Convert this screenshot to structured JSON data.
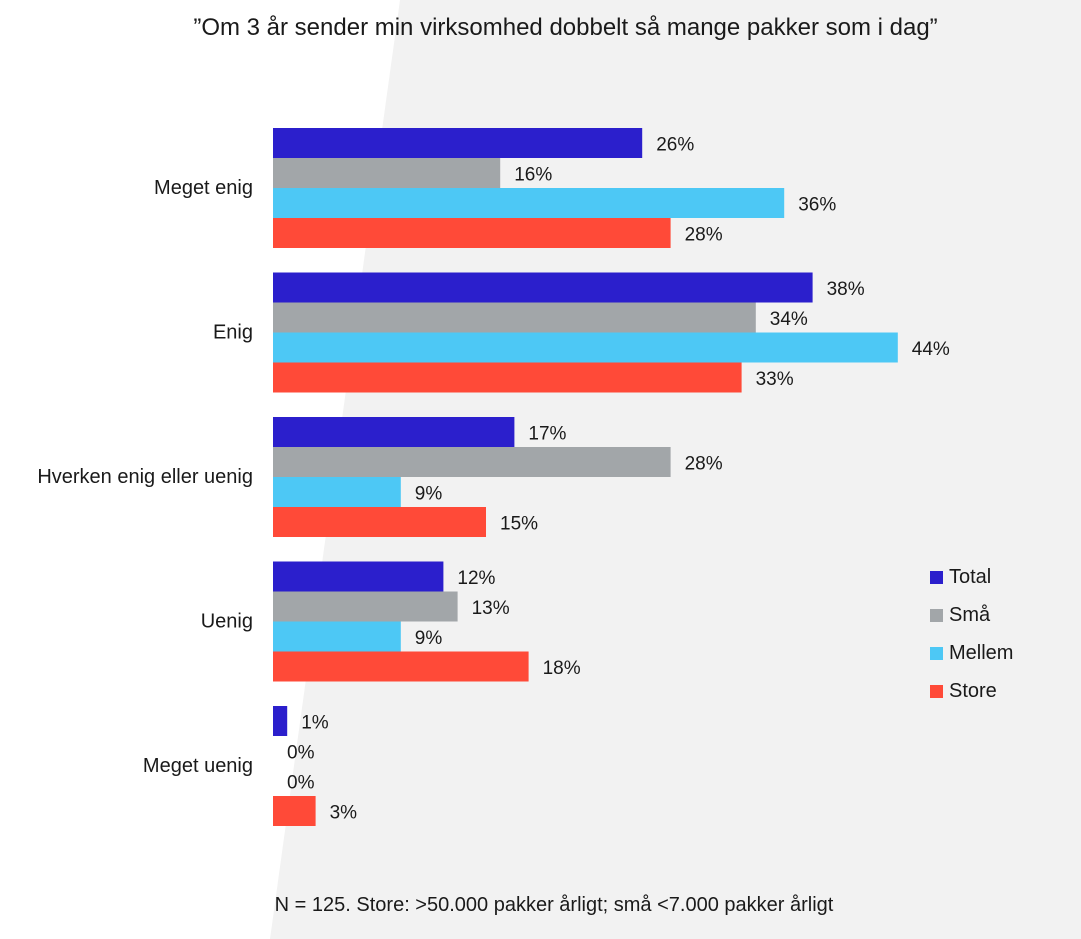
{
  "chart_data": {
    "type": "bar",
    "orientation": "horizontal",
    "title": "”Om 3 år sender min virksomhed dobbelt så mange pakker som i dag”",
    "categories": [
      "Meget enig",
      "Enig",
      "Hverken enig eller uenig",
      "Uenig",
      "Meget uenig"
    ],
    "series": [
      {
        "name": "Total",
        "color": "#2b1fcc",
        "values": [
          26,
          38,
          17,
          12,
          1
        ]
      },
      {
        "name": "Små",
        "color": "#a2a6a9",
        "values": [
          16,
          34,
          28,
          13,
          0
        ]
      },
      {
        "name": "Mellem",
        "color": "#4dc8f5",
        "values": [
          36,
          44,
          9,
          9,
          0
        ]
      },
      {
        "name": "Store",
        "color": "#ff4a38",
        "values": [
          28,
          33,
          15,
          18,
          3
        ]
      }
    ],
    "value_suffix": "%",
    "xlim": [
      0,
      45
    ],
    "legend_position": "right",
    "footnote": "N = 125. Store: >50.000 pakker årligt; små <7.000 pakker årligt"
  },
  "colors": {
    "background": "#ffffff",
    "background_shape": "#f1f1f1",
    "text": "#1a1a1a"
  }
}
